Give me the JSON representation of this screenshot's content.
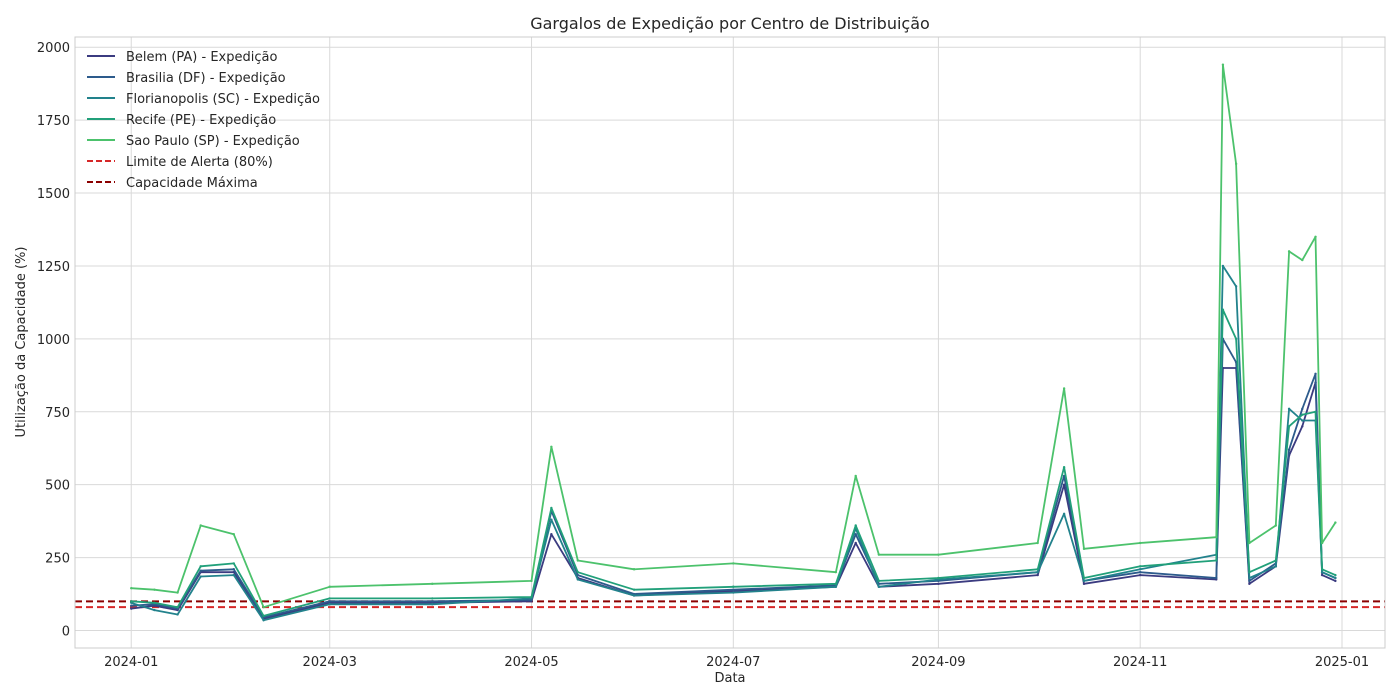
{
  "chart_data": {
    "type": "line",
    "title": "Gargalos de Expedição por Centro de Distribuição",
    "xlabel": "Data",
    "ylabel": "Utilização da Capacidade (%)",
    "xlim": [
      "2023-12-15",
      "2025-01-14"
    ],
    "ylim": [
      -60,
      2035
    ],
    "xticks": [
      "2024-01-01",
      "2024-03-01",
      "2024-05-01",
      "2024-07-01",
      "2024-09-01",
      "2024-11-01",
      "2025-01-01"
    ],
    "xtick_labels": [
      "2024-01",
      "2024-03",
      "2024-05",
      "2024-07",
      "2024-09",
      "2024-11",
      "2025-01"
    ],
    "yticks": [
      0,
      250,
      500,
      750,
      1000,
      1250,
      1500,
      1750,
      2000
    ],
    "ytick_labels": [
      "0",
      "250",
      "500",
      "750",
      "1000",
      "1250",
      "1500",
      "1750",
      "2000"
    ],
    "grid": true,
    "legend_position": "upper-left",
    "series": [
      {
        "name": "Belem (PA) - Expedição",
        "color": "#3b3b80",
        "points": [
          [
            "2024-01-01",
            75
          ],
          [
            "2024-01-08",
            85
          ],
          [
            "2024-01-15",
            70
          ],
          [
            "2024-01-22",
            200
          ],
          [
            "2024-02-01",
            200
          ],
          [
            "2024-02-10",
            40
          ],
          [
            "2024-03-01",
            95
          ],
          [
            "2024-04-01",
            95
          ],
          [
            "2024-05-01",
            100
          ],
          [
            "2024-05-07",
            330
          ],
          [
            "2024-05-15",
            180
          ],
          [
            "2024-06-01",
            120
          ],
          [
            "2024-07-01",
            135
          ],
          [
            "2024-08-01",
            150
          ],
          [
            "2024-08-07",
            300
          ],
          [
            "2024-08-14",
            150
          ],
          [
            "2024-09-01",
            160
          ],
          [
            "2024-10-01",
            190
          ],
          [
            "2024-10-09",
            500
          ],
          [
            "2024-10-15",
            160
          ],
          [
            "2024-11-01",
            190
          ],
          [
            "2024-11-24",
            175
          ],
          [
            "2024-11-26",
            900
          ],
          [
            "2024-11-30",
            900
          ],
          [
            "2024-12-04",
            160
          ],
          [
            "2024-12-12",
            220
          ],
          [
            "2024-12-16",
            600
          ],
          [
            "2024-12-20",
            700
          ],
          [
            "2024-12-24",
            850
          ],
          [
            "2024-12-26",
            190
          ],
          [
            "2024-12-30",
            170
          ]
        ]
      },
      {
        "name": "Brasilia (DF) - Expedição",
        "color": "#2d5b8c",
        "points": [
          [
            "2024-01-01",
            85
          ],
          [
            "2024-01-08",
            90
          ],
          [
            "2024-01-15",
            75
          ],
          [
            "2024-01-22",
            205
          ],
          [
            "2024-02-01",
            210
          ],
          [
            "2024-02-10",
            45
          ],
          [
            "2024-03-01",
            100
          ],
          [
            "2024-04-01",
            100
          ],
          [
            "2024-05-01",
            105
          ],
          [
            "2024-05-07",
            410
          ],
          [
            "2024-05-15",
            190
          ],
          [
            "2024-06-01",
            125
          ],
          [
            "2024-07-01",
            140
          ],
          [
            "2024-08-01",
            155
          ],
          [
            "2024-08-07",
            330
          ],
          [
            "2024-08-14",
            160
          ],
          [
            "2024-09-01",
            170
          ],
          [
            "2024-10-01",
            200
          ],
          [
            "2024-10-09",
            530
          ],
          [
            "2024-10-15",
            170
          ],
          [
            "2024-11-01",
            200
          ],
          [
            "2024-11-24",
            180
          ],
          [
            "2024-11-26",
            1000
          ],
          [
            "2024-11-30",
            920
          ],
          [
            "2024-12-04",
            170
          ],
          [
            "2024-12-12",
            230
          ],
          [
            "2024-12-16",
            620
          ],
          [
            "2024-12-20",
            760
          ],
          [
            "2024-12-24",
            880
          ],
          [
            "2024-12-26",
            200
          ],
          [
            "2024-12-30",
            180
          ]
        ]
      },
      {
        "name": "Florianopolis (SC) - Expedição",
        "color": "#22828c",
        "points": [
          [
            "2024-01-01",
            95
          ],
          [
            "2024-01-08",
            70
          ],
          [
            "2024-01-15",
            55
          ],
          [
            "2024-01-22",
            185
          ],
          [
            "2024-02-01",
            190
          ],
          [
            "2024-02-10",
            35
          ],
          [
            "2024-03-01",
            90
          ],
          [
            "2024-04-01",
            90
          ],
          [
            "2024-05-01",
            110
          ],
          [
            "2024-05-07",
            380
          ],
          [
            "2024-05-15",
            175
          ],
          [
            "2024-06-01",
            120
          ],
          [
            "2024-07-01",
            130
          ],
          [
            "2024-08-01",
            150
          ],
          [
            "2024-08-07",
            350
          ],
          [
            "2024-08-14",
            150
          ],
          [
            "2024-09-01",
            175
          ],
          [
            "2024-10-01",
            200
          ],
          [
            "2024-10-09",
            400
          ],
          [
            "2024-10-15",
            170
          ],
          [
            "2024-11-01",
            210
          ],
          [
            "2024-11-24",
            260
          ],
          [
            "2024-11-26",
            1250
          ],
          [
            "2024-11-30",
            1180
          ],
          [
            "2024-12-04",
            180
          ],
          [
            "2024-12-12",
            220
          ],
          [
            "2024-12-16",
            760
          ],
          [
            "2024-12-20",
            720
          ],
          [
            "2024-12-24",
            720
          ],
          [
            "2024-12-26",
            200
          ],
          [
            "2024-12-30",
            180
          ]
        ]
      },
      {
        "name": "Recife (PE) - Expedição",
        "color": "#21a07a",
        "points": [
          [
            "2024-01-01",
            100
          ],
          [
            "2024-01-08",
            95
          ],
          [
            "2024-01-15",
            80
          ],
          [
            "2024-01-22",
            220
          ],
          [
            "2024-02-01",
            230
          ],
          [
            "2024-02-10",
            50
          ],
          [
            "2024-03-01",
            110
          ],
          [
            "2024-04-01",
            110
          ],
          [
            "2024-05-01",
            115
          ],
          [
            "2024-05-07",
            420
          ],
          [
            "2024-05-15",
            200
          ],
          [
            "2024-06-01",
            140
          ],
          [
            "2024-07-01",
            150
          ],
          [
            "2024-08-01",
            160
          ],
          [
            "2024-08-07",
            360
          ],
          [
            "2024-08-14",
            170
          ],
          [
            "2024-09-01",
            180
          ],
          [
            "2024-10-01",
            210
          ],
          [
            "2024-10-09",
            560
          ],
          [
            "2024-10-15",
            180
          ],
          [
            "2024-11-01",
            220
          ],
          [
            "2024-11-24",
            240
          ],
          [
            "2024-11-26",
            1100
          ],
          [
            "2024-11-30",
            1000
          ],
          [
            "2024-12-04",
            200
          ],
          [
            "2024-12-12",
            240
          ],
          [
            "2024-12-16",
            700
          ],
          [
            "2024-12-20",
            740
          ],
          [
            "2024-12-24",
            750
          ],
          [
            "2024-12-26",
            210
          ],
          [
            "2024-12-30",
            190
          ]
        ]
      },
      {
        "name": "Sao Paulo (SP) - Expedição",
        "color": "#4cc26c",
        "points": [
          [
            "2024-01-01",
            145
          ],
          [
            "2024-01-08",
            140
          ],
          [
            "2024-01-15",
            130
          ],
          [
            "2024-01-22",
            360
          ],
          [
            "2024-02-01",
            330
          ],
          [
            "2024-02-10",
            80
          ],
          [
            "2024-03-01",
            150
          ],
          [
            "2024-04-01",
            160
          ],
          [
            "2024-05-01",
            170
          ],
          [
            "2024-05-07",
            630
          ],
          [
            "2024-05-15",
            240
          ],
          [
            "2024-06-01",
            210
          ],
          [
            "2024-07-01",
            230
          ],
          [
            "2024-08-01",
            200
          ],
          [
            "2024-08-07",
            530
          ],
          [
            "2024-08-14",
            260
          ],
          [
            "2024-09-01",
            260
          ],
          [
            "2024-10-01",
            300
          ],
          [
            "2024-10-09",
            830
          ],
          [
            "2024-10-15",
            280
          ],
          [
            "2024-11-01",
            300
          ],
          [
            "2024-11-24",
            320
          ],
          [
            "2024-11-26",
            1940
          ],
          [
            "2024-11-30",
            1600
          ],
          [
            "2024-12-04",
            300
          ],
          [
            "2024-12-12",
            360
          ],
          [
            "2024-12-16",
            1300
          ],
          [
            "2024-12-20",
            1270
          ],
          [
            "2024-12-24",
            1350
          ],
          [
            "2024-12-26",
            300
          ],
          [
            "2024-12-30",
            370
          ]
        ]
      }
    ],
    "hlines": [
      {
        "name": "Limite de Alerta (80%)",
        "value": 80,
        "color": "#d62728",
        "style": "dashed"
      },
      {
        "name": "Capacidade Máxima",
        "value": 100,
        "color": "#8b0000",
        "style": "dashed"
      }
    ]
  }
}
